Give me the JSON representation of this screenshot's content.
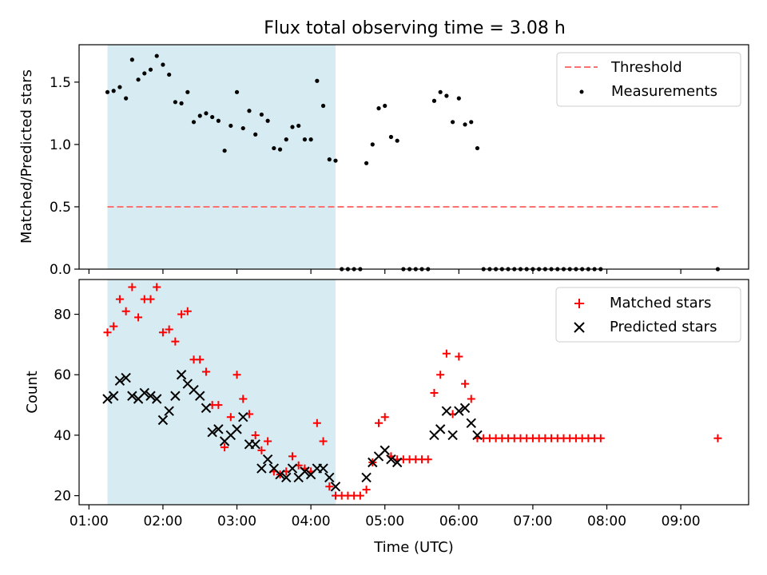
{
  "title": "Flux total observing time = 3.08 h",
  "chart_data": [
    {
      "type": "scatter",
      "ylabel": "Matched/Predicted stars",
      "xlim": [
        "00:52",
        "09:55"
      ],
      "ylim": [
        0,
        1.8
      ],
      "yticks": [
        0.0,
        0.5,
        1.0,
        1.5
      ],
      "ytick_labels": [
        "0.0",
        "0.5",
        "1.0",
        "1.5"
      ],
      "shaded_interval": [
        "01:15",
        "04:20"
      ],
      "shade_color": "#add8e6",
      "legend_position": "top-right",
      "series": [
        {
          "name": "Threshold",
          "kind": "dashed-line",
          "color": "#ff7070",
          "x": [
            "01:15",
            "09:30"
          ],
          "y": [
            0.5,
            0.5
          ]
        },
        {
          "name": "Measurements",
          "kind": "points",
          "color": "#000000",
          "x": [
            "01:15",
            "01:20",
            "01:25",
            "01:30",
            "01:35",
            "01:40",
            "01:45",
            "01:50",
            "01:55",
            "02:00",
            "02:05",
            "02:10",
            "02:15",
            "02:20",
            "02:25",
            "02:30",
            "02:35",
            "02:40",
            "02:45",
            "02:50",
            "02:55",
            "03:00",
            "03:05",
            "03:10",
            "03:15",
            "03:20",
            "03:25",
            "03:30",
            "03:35",
            "03:40",
            "03:45",
            "03:50",
            "03:55",
            "04:00",
            "04:05",
            "04:10",
            "04:15",
            "04:20",
            "04:25",
            "04:30",
            "04:35",
            "04:40",
            "04:45",
            "04:50",
            "04:55",
            "05:00",
            "05:05",
            "05:10",
            "05:15",
            "05:20",
            "05:25",
            "05:30",
            "05:35",
            "05:40",
            "05:45",
            "05:50",
            "05:55",
            "06:00",
            "06:05",
            "06:10",
            "06:15",
            "06:20",
            "06:25",
            "06:30",
            "06:35",
            "06:40",
            "06:45",
            "06:50",
            "06:55",
            "07:00",
            "07:05",
            "07:10",
            "07:15",
            "07:20",
            "07:25",
            "07:30",
            "07:35",
            "07:40",
            "07:45",
            "07:50",
            "07:55",
            "09:30"
          ],
          "y": [
            1.42,
            1.43,
            1.46,
            1.37,
            1.68,
            1.52,
            1.57,
            1.6,
            1.71,
            1.64,
            1.56,
            1.34,
            1.33,
            1.42,
            1.18,
            1.23,
            1.25,
            1.22,
            1.19,
            0.95,
            1.15,
            1.42,
            1.13,
            1.27,
            1.08,
            1.24,
            1.19,
            0.97,
            0.96,
            1.04,
            1.14,
            1.15,
            1.04,
            1.04,
            1.51,
            1.31,
            0.88,
            0.87,
            0.0,
            0.0,
            0.0,
            0.0,
            0.85,
            1.0,
            1.29,
            1.31,
            1.06,
            1.03,
            0.0,
            0.0,
            0.0,
            0.0,
            0.0,
            1.35,
            1.42,
            1.39,
            1.18,
            1.37,
            1.16,
            1.18,
            0.97,
            0.0,
            0.0,
            0.0,
            0.0,
            0.0,
            0.0,
            0.0,
            0.0,
            0.0,
            0.0,
            0.0,
            0.0,
            0.0,
            0.0,
            0.0,
            0.0,
            0.0,
            0.0,
            0.0,
            0.0,
            0.0
          ]
        }
      ]
    },
    {
      "type": "scatter",
      "xlabel": "Time (UTC)",
      "ylabel": "Count",
      "xlim": [
        "00:52",
        "09:55"
      ],
      "ylim": [
        17,
        91.5
      ],
      "xticks": [
        "01:00",
        "02:00",
        "03:00",
        "04:00",
        "05:00",
        "06:00",
        "07:00",
        "08:00",
        "09:00"
      ],
      "yticks": [
        20,
        40,
        60,
        80
      ],
      "shaded_interval": [
        "01:15",
        "04:20"
      ],
      "shade_color": "#add8e6",
      "legend_position": "top-right",
      "series": [
        {
          "name": "Matched stars",
          "marker": "plus",
          "color": "#ff0000",
          "x": [
            "01:15",
            "01:20",
            "01:25",
            "01:30",
            "01:35",
            "01:40",
            "01:45",
            "01:50",
            "01:55",
            "02:00",
            "02:05",
            "02:10",
            "02:15",
            "02:20",
            "02:25",
            "02:30",
            "02:35",
            "02:40",
            "02:45",
            "02:50",
            "02:55",
            "03:00",
            "03:05",
            "03:10",
            "03:15",
            "03:20",
            "03:25",
            "03:30",
            "03:35",
            "03:40",
            "03:45",
            "03:50",
            "03:55",
            "04:00",
            "04:05",
            "04:10",
            "04:15",
            "04:20",
            "04:25",
            "04:30",
            "04:35",
            "04:40",
            "04:45",
            "04:50",
            "04:55",
            "05:00",
            "05:05",
            "05:10",
            "05:15",
            "05:20",
            "05:25",
            "05:30",
            "05:35",
            "05:40",
            "05:45",
            "05:50",
            "05:55",
            "06:00",
            "06:05",
            "06:10",
            "06:15",
            "06:20",
            "06:25",
            "06:30",
            "06:35",
            "06:40",
            "06:45",
            "06:50",
            "06:55",
            "07:00",
            "07:05",
            "07:10",
            "07:15",
            "07:20",
            "07:25",
            "07:30",
            "07:35",
            "07:40",
            "07:45",
            "07:50",
            "07:55",
            "09:30"
          ],
          "y": [
            74,
            76,
            85,
            81,
            89,
            79,
            85,
            85,
            89,
            74,
            75,
            71,
            80,
            81,
            65,
            65,
            61,
            50,
            50,
            36,
            46,
            60,
            52,
            47,
            40,
            35,
            38,
            28,
            27,
            28,
            33,
            30,
            29,
            28,
            44,
            38,
            23,
            20,
            20,
            20,
            20,
            20,
            22,
            31,
            44,
            46,
            33,
            32,
            32,
            32,
            32,
            32,
            32,
            54,
            60,
            67,
            47,
            66,
            57,
            52,
            39,
            39,
            39,
            39,
            39,
            39,
            39,
            39,
            39,
            39,
            39,
            39,
            39,
            39,
            39,
            39,
            39,
            39,
            39,
            39,
            39,
            39
          ]
        },
        {
          "name": "Predicted stars",
          "marker": "x",
          "color": "#000000",
          "x": [
            "01:15",
            "01:20",
            "01:25",
            "01:30",
            "01:35",
            "01:40",
            "01:45",
            "01:50",
            "01:55",
            "02:00",
            "02:05",
            "02:10",
            "02:15",
            "02:20",
            "02:25",
            "02:30",
            "02:35",
            "02:40",
            "02:45",
            "02:50",
            "02:55",
            "03:00",
            "03:05",
            "03:10",
            "03:15",
            "03:20",
            "03:25",
            "03:30",
            "03:35",
            "03:40",
            "03:45",
            "03:50",
            "03:55",
            "04:00",
            "04:05",
            "04:10",
            "04:15",
            "04:20",
            "04:45",
            "04:50",
            "04:55",
            "05:00",
            "05:05",
            "05:10",
            "05:40",
            "05:45",
            "05:50",
            "05:55",
            "06:00",
            "06:05",
            "06:10",
            "06:15"
          ],
          "y": [
            52,
            53,
            58,
            59,
            53,
            52,
            54,
            53,
            52,
            45,
            48,
            53,
            60,
            57,
            55,
            53,
            49,
            41,
            42,
            38,
            40,
            42,
            46,
            37,
            37,
            29,
            32,
            29,
            27,
            26,
            29,
            26,
            28,
            27,
            29,
            29,
            26,
            23,
            26,
            31,
            33,
            35,
            32,
            31,
            40,
            42,
            48,
            40,
            48,
            49,
            44,
            40
          ]
        }
      ]
    }
  ]
}
